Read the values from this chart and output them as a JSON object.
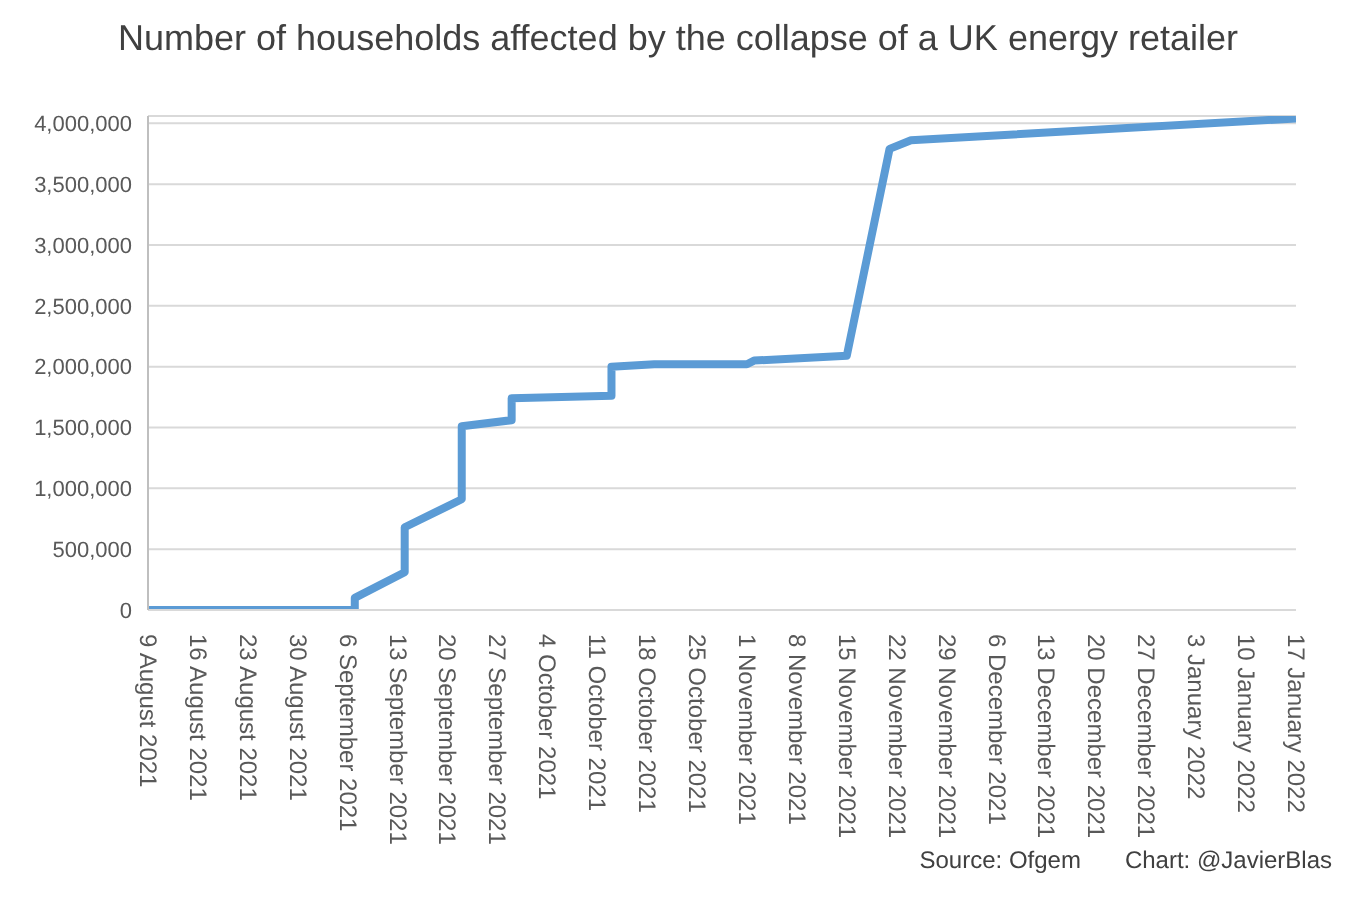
{
  "chart_data": {
    "type": "line",
    "title": "Number of households affected by the collapse of a UK energy retailer",
    "annotations": [
      "Source: Ofgem",
      "Chart: @JavierBlas"
    ],
    "series": [
      {
        "color": "#5b9bd5",
        "x": [
          "2021-08-09",
          "2021-09-07",
          "2021-09-07",
          "2021-09-14",
          "2021-09-14",
          "2021-09-22",
          "2021-09-22",
          "2021-09-29",
          "2021-09-29",
          "2021-10-13",
          "2021-10-13",
          "2021-10-19",
          "2021-11-01",
          "2021-11-02",
          "2021-11-15",
          "2021-11-21",
          "2021-11-24",
          "2022-01-17"
        ],
        "values": [
          0,
          0,
          100000,
          310000,
          680000,
          910000,
          1510000,
          1560000,
          1740000,
          1760000,
          2000000,
          2020000,
          2020000,
          2050000,
          2090000,
          3790000,
          3860000,
          4040000
        ]
      }
    ],
    "xlim": [
      "2021-08-09",
      "2022-01-17"
    ],
    "xticks": [
      {
        "value": "2021-08-09",
        "label": "9 August 2021"
      },
      {
        "value": "2021-08-16",
        "label": "16 August 2021"
      },
      {
        "value": "2021-08-23",
        "label": "23 August 2021"
      },
      {
        "value": "2021-08-30",
        "label": "30 August 2021"
      },
      {
        "value": "2021-09-06",
        "label": "6 September 2021"
      },
      {
        "value": "2021-09-13",
        "label": "13 September 2021"
      },
      {
        "value": "2021-09-20",
        "label": "20 September 2021"
      },
      {
        "value": "2021-09-27",
        "label": "27 September 2021"
      },
      {
        "value": "2021-10-04",
        "label": "4 October 2021"
      },
      {
        "value": "2021-10-11",
        "label": "11 October 2021"
      },
      {
        "value": "2021-10-18",
        "label": "18 October 2021"
      },
      {
        "value": "2021-10-25",
        "label": "25 October 2021"
      },
      {
        "value": "2021-11-01",
        "label": "1 November 2021"
      },
      {
        "value": "2021-11-08",
        "label": "8 November 2021"
      },
      {
        "value": "2021-11-15",
        "label": "15 November 2021"
      },
      {
        "value": "2021-11-22",
        "label": "22 November 2021"
      },
      {
        "value": "2021-11-29",
        "label": "29 November 2021"
      },
      {
        "value": "2021-12-06",
        "label": "6 December 2021"
      },
      {
        "value": "2021-12-13",
        "label": "13 December 2021"
      },
      {
        "value": "2021-12-20",
        "label": "20 December 2021"
      },
      {
        "value": "2021-12-27",
        "label": "27 December 2021"
      },
      {
        "value": "2022-01-03",
        "label": "3 January 2022"
      },
      {
        "value": "2022-01-10",
        "label": "10 January 2022"
      },
      {
        "value": "2022-01-17",
        "label": "17 January 2022"
      }
    ],
    "ylim": [
      0,
      4060000
    ],
    "yticks": [
      0,
      {
        "value": 500000,
        "label": "500,000"
      },
      {
        "value": 1000000,
        "label": "1,000,000"
      },
      {
        "value": 1500000,
        "label": "1,500,000"
      },
      {
        "value": 2000000,
        "label": "2,000,000"
      },
      {
        "value": 2500000,
        "label": "2,500,000"
      },
      {
        "value": 3000000,
        "label": "3,000,000"
      },
      {
        "value": 3500000,
        "label": "3,500,000"
      },
      {
        "value": 4000000,
        "label": "4,000,000"
      }
    ],
    "grid": "y",
    "marker": "none",
    "line_style": "solid"
  }
}
